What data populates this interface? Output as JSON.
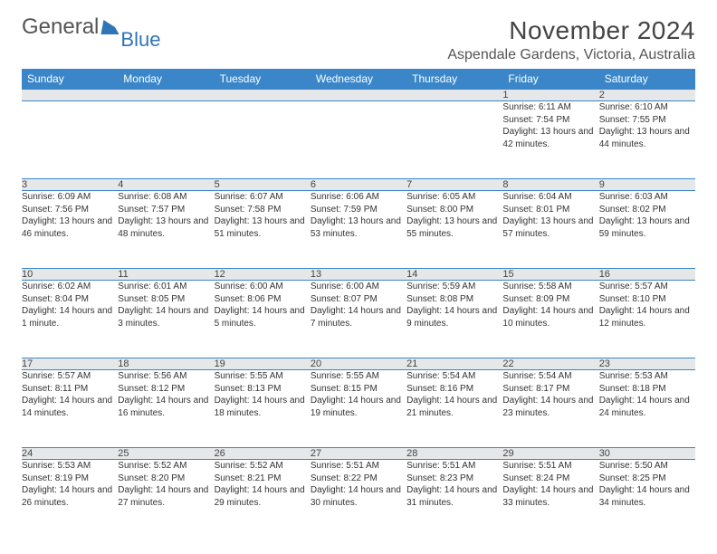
{
  "logo": {
    "text1": "General",
    "text2": "Blue"
  },
  "title": "November 2024",
  "location": "Aspendale Gardens, Victoria, Australia",
  "colors": {
    "header_bg": "#3a86c8",
    "header_text": "#ffffff",
    "daynum_bg": "#e6e7e8",
    "border": "#3a86c8",
    "text": "#333333",
    "logo_blue": "#2e75b6"
  },
  "dayHeaders": [
    "Sunday",
    "Monday",
    "Tuesday",
    "Wednesday",
    "Thursday",
    "Friday",
    "Saturday"
  ],
  "weeks": [
    [
      null,
      null,
      null,
      null,
      null,
      {
        "n": "1",
        "sunrise": "6:11 AM",
        "sunset": "7:54 PM",
        "daylight": "13 hours and 42 minutes."
      },
      {
        "n": "2",
        "sunrise": "6:10 AM",
        "sunset": "7:55 PM",
        "daylight": "13 hours and 44 minutes."
      }
    ],
    [
      {
        "n": "3",
        "sunrise": "6:09 AM",
        "sunset": "7:56 PM",
        "daylight": "13 hours and 46 minutes."
      },
      {
        "n": "4",
        "sunrise": "6:08 AM",
        "sunset": "7:57 PM",
        "daylight": "13 hours and 48 minutes."
      },
      {
        "n": "5",
        "sunrise": "6:07 AM",
        "sunset": "7:58 PM",
        "daylight": "13 hours and 51 minutes."
      },
      {
        "n": "6",
        "sunrise": "6:06 AM",
        "sunset": "7:59 PM",
        "daylight": "13 hours and 53 minutes."
      },
      {
        "n": "7",
        "sunrise": "6:05 AM",
        "sunset": "8:00 PM",
        "daylight": "13 hours and 55 minutes."
      },
      {
        "n": "8",
        "sunrise": "6:04 AM",
        "sunset": "8:01 PM",
        "daylight": "13 hours and 57 minutes."
      },
      {
        "n": "9",
        "sunrise": "6:03 AM",
        "sunset": "8:02 PM",
        "daylight": "13 hours and 59 minutes."
      }
    ],
    [
      {
        "n": "10",
        "sunrise": "6:02 AM",
        "sunset": "8:04 PM",
        "daylight": "14 hours and 1 minute."
      },
      {
        "n": "11",
        "sunrise": "6:01 AM",
        "sunset": "8:05 PM",
        "daylight": "14 hours and 3 minutes."
      },
      {
        "n": "12",
        "sunrise": "6:00 AM",
        "sunset": "8:06 PM",
        "daylight": "14 hours and 5 minutes."
      },
      {
        "n": "13",
        "sunrise": "6:00 AM",
        "sunset": "8:07 PM",
        "daylight": "14 hours and 7 minutes."
      },
      {
        "n": "14",
        "sunrise": "5:59 AM",
        "sunset": "8:08 PM",
        "daylight": "14 hours and 9 minutes."
      },
      {
        "n": "15",
        "sunrise": "5:58 AM",
        "sunset": "8:09 PM",
        "daylight": "14 hours and 10 minutes."
      },
      {
        "n": "16",
        "sunrise": "5:57 AM",
        "sunset": "8:10 PM",
        "daylight": "14 hours and 12 minutes."
      }
    ],
    [
      {
        "n": "17",
        "sunrise": "5:57 AM",
        "sunset": "8:11 PM",
        "daylight": "14 hours and 14 minutes."
      },
      {
        "n": "18",
        "sunrise": "5:56 AM",
        "sunset": "8:12 PM",
        "daylight": "14 hours and 16 minutes."
      },
      {
        "n": "19",
        "sunrise": "5:55 AM",
        "sunset": "8:13 PM",
        "daylight": "14 hours and 18 minutes."
      },
      {
        "n": "20",
        "sunrise": "5:55 AM",
        "sunset": "8:15 PM",
        "daylight": "14 hours and 19 minutes."
      },
      {
        "n": "21",
        "sunrise": "5:54 AM",
        "sunset": "8:16 PM",
        "daylight": "14 hours and 21 minutes."
      },
      {
        "n": "22",
        "sunrise": "5:54 AM",
        "sunset": "8:17 PM",
        "daylight": "14 hours and 23 minutes."
      },
      {
        "n": "23",
        "sunrise": "5:53 AM",
        "sunset": "8:18 PM",
        "daylight": "14 hours and 24 minutes."
      }
    ],
    [
      {
        "n": "24",
        "sunrise": "5:53 AM",
        "sunset": "8:19 PM",
        "daylight": "14 hours and 26 minutes."
      },
      {
        "n": "25",
        "sunrise": "5:52 AM",
        "sunset": "8:20 PM",
        "daylight": "14 hours and 27 minutes."
      },
      {
        "n": "26",
        "sunrise": "5:52 AM",
        "sunset": "8:21 PM",
        "daylight": "14 hours and 29 minutes."
      },
      {
        "n": "27",
        "sunrise": "5:51 AM",
        "sunset": "8:22 PM",
        "daylight": "14 hours and 30 minutes."
      },
      {
        "n": "28",
        "sunrise": "5:51 AM",
        "sunset": "8:23 PM",
        "daylight": "14 hours and 31 minutes."
      },
      {
        "n": "29",
        "sunrise": "5:51 AM",
        "sunset": "8:24 PM",
        "daylight": "14 hours and 33 minutes."
      },
      {
        "n": "30",
        "sunrise": "5:50 AM",
        "sunset": "8:25 PM",
        "daylight": "14 hours and 34 minutes."
      }
    ]
  ],
  "labels": {
    "sunrise": "Sunrise: ",
    "sunset": "Sunset: ",
    "daylight": "Daylight: "
  }
}
